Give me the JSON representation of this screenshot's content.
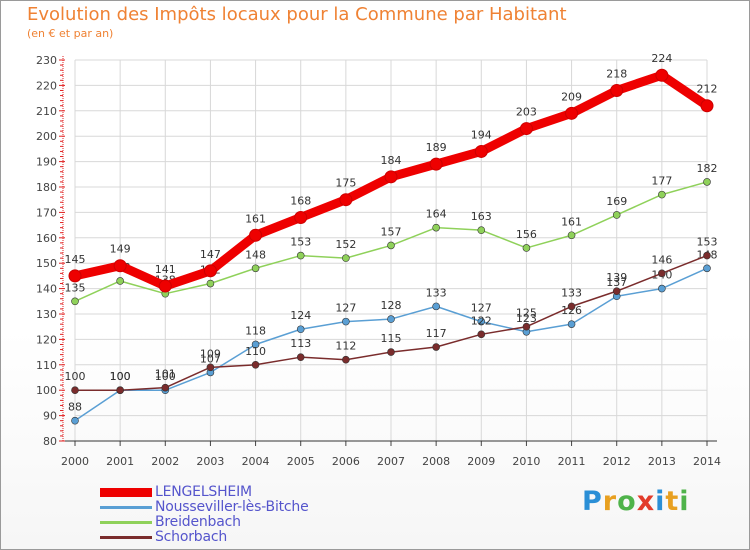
{
  "header": {
    "title": "Evolution des Impôts locaux pour la Commune par Habitant",
    "subtitle": "(en € et par an)"
  },
  "brand": {
    "letters": [
      "P",
      "r",
      "o",
      "x",
      "i",
      "t",
      "i"
    ],
    "colors": [
      "#2b8fd6",
      "#e8a020",
      "#4fb34a",
      "#e23b2a",
      "#2b8fd6",
      "#e8a020",
      "#4fb34a"
    ]
  },
  "chart_data": {
    "type": "line",
    "title": "Evolution des Impôts locaux pour la Commune par Habitant",
    "ylabel": "(en € et par an)",
    "xlabel": "",
    "x": [
      "2000",
      "2001",
      "2002",
      "2003",
      "2004",
      "2005",
      "2006",
      "2007",
      "2008",
      "2009",
      "2010",
      "2011",
      "2012",
      "2013",
      "2014"
    ],
    "ylim": [
      80,
      230
    ],
    "yticks": [
      "80",
      "90",
      "100",
      "110",
      "120",
      "130",
      "140",
      "150",
      "160",
      "170",
      "180",
      "190",
      "200",
      "210",
      "220",
      "230"
    ],
    "grid": true,
    "legend": "bottom-left",
    "series": [
      {
        "name": "LENGELSHEIM",
        "color": "#ee0000",
        "values": [
          145,
          149,
          141,
          147,
          161,
          168,
          175,
          184,
          189,
          194,
          203,
          209,
          218,
          224,
          212
        ],
        "labels": [
          "145",
          "149",
          "141",
          "147",
          "161",
          "168",
          "175",
          "184",
          "189",
          "194",
          "203",
          "209",
          "218",
          "224",
          "212"
        ]
      },
      {
        "name": "Nousseviller-lès-Bitche",
        "color": "#5a9fd4",
        "values": [
          88,
          100,
          100,
          107,
          118,
          124,
          127,
          128,
          133,
          127,
          123,
          126,
          137,
          140,
          148
        ],
        "labels": [
          "88",
          "100",
          "100",
          "107",
          "118",
          "124",
          "127",
          "128",
          "133",
          "127",
          "123",
          "126",
          "137",
          "140",
          "148"
        ]
      },
      {
        "name": "Breidenbach",
        "color": "#8fd15a",
        "values": [
          135,
          143,
          138,
          142,
          148,
          153,
          152,
          157,
          164,
          163,
          156,
          161,
          169,
          177,
          182
        ],
        "labels": [
          "135",
          "143",
          "138",
          "142",
          "148",
          "153",
          "152",
          "157",
          "164",
          "163",
          "156",
          "161",
          "169",
          "177",
          "182"
        ]
      },
      {
        "name": "Schorbach",
        "color": "#7a2c2c",
        "values": [
          100,
          100,
          101,
          109,
          110,
          113,
          112,
          115,
          117,
          122,
          125,
          133,
          139,
          146,
          153
        ],
        "labels": [
          "100",
          "100",
          "101",
          "109",
          "110",
          "113",
          "112",
          "115",
          "117",
          "122",
          "125",
          "133",
          "139",
          "146",
          "153"
        ]
      }
    ]
  }
}
